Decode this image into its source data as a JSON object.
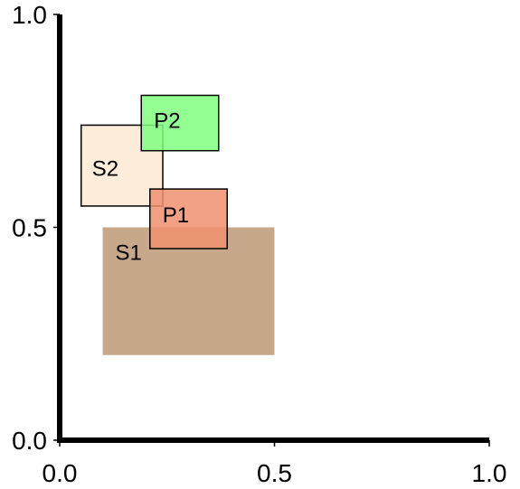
{
  "chart_data": {
    "type": "box_diagram",
    "xlim": [
      0.0,
      1.0
    ],
    "ylim": [
      0.0,
      1.0
    ],
    "x_ticks": [
      "0.0",
      "0.5",
      "1.0"
    ],
    "y_ticks": [
      "0.0",
      "0.5",
      "1.0"
    ],
    "grid": false,
    "boxes": [
      {
        "label": "S1",
        "x": [
          0.1,
          0.5
        ],
        "y": [
          0.2,
          0.5
        ],
        "fill": "#c8a88a",
        "outlined": false
      },
      {
        "label": "S2",
        "x": [
          0.05,
          0.24
        ],
        "y": [
          0.55,
          0.74
        ],
        "fill": "#fde9d4",
        "outlined": true
      },
      {
        "label": "P2",
        "x": [
          0.19,
          0.37
        ],
        "y": [
          0.68,
          0.81
        ],
        "fill": "#80ff80",
        "outlined": true
      },
      {
        "label": "P1",
        "x": [
          0.21,
          0.39
        ],
        "y": [
          0.45,
          0.59
        ],
        "fill": "#f09070",
        "outlined": true
      }
    ]
  }
}
